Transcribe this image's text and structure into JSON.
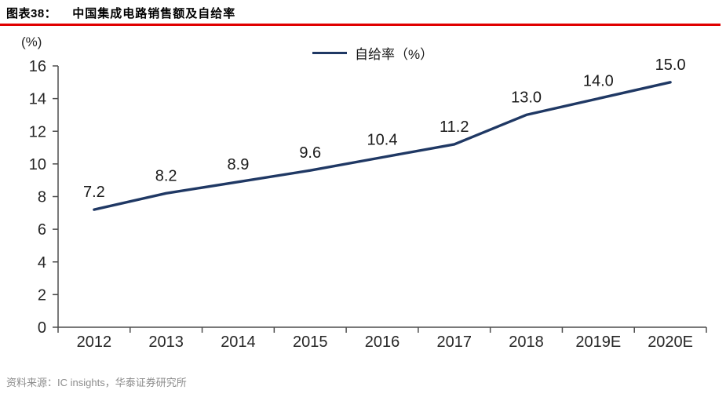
{
  "header": {
    "figure_label": "图表38：",
    "figure_title": "中国集成电路销售额及自给率"
  },
  "chart": {
    "unit_label": "(%)",
    "legend_label": "自给率（%）"
  },
  "chart_data": {
    "type": "line",
    "title": "中国集成电路销售额及自给率",
    "categories": [
      "2012",
      "2013",
      "2014",
      "2015",
      "2016",
      "2017",
      "2018",
      "2019E",
      "2020E"
    ],
    "series": [
      {
        "name": "自给率（%）",
        "values": [
          7.2,
          8.2,
          8.9,
          9.6,
          10.4,
          11.2,
          13.0,
          14.0,
          15.0
        ]
      }
    ],
    "xlabel": "",
    "ylabel": "(%)",
    "ylim": [
      0,
      16
    ],
    "ytick_step": 2,
    "grid": false,
    "legend_position": "top-center",
    "value_label_decimals": 1
  },
  "colors": {
    "line_navy": "#1F3864",
    "rule_red": "#E00000",
    "axis_gray": "#4D4D4D",
    "label_dark": "#262626",
    "source_gray": "#8C8C8C"
  },
  "footer": {
    "source": "资料来源：IC insights，华泰证券研究所"
  }
}
